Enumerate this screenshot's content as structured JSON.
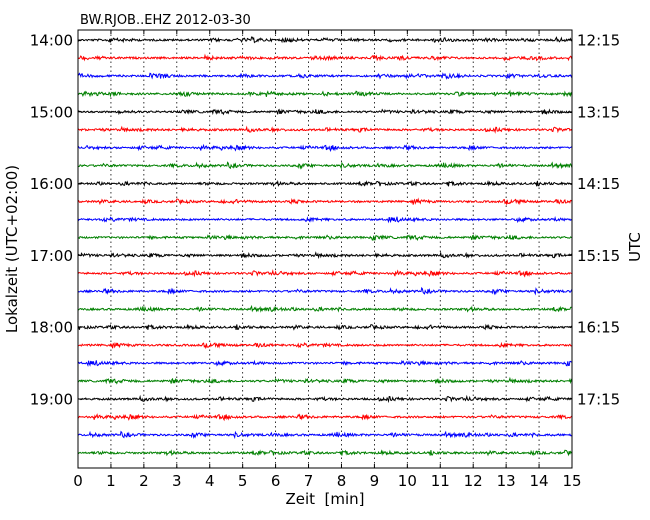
{
  "chart_data": {
    "type": "line",
    "title": "BW.RJOB..EHZ 2012-03-30",
    "xlabel": "Zeit  [min]",
    "ylabel_left": "Lokalzeit (UTC+02:00)",
    "ylabel_right": "UTC",
    "xlim": [
      0,
      15
    ],
    "x_ticks": [
      "0",
      "1",
      "2",
      "3",
      "4",
      "5",
      "6",
      "7",
      "8",
      "9",
      "10",
      "11",
      "12",
      "13",
      "14",
      "15"
    ],
    "left_tick_labels": [
      "14:00",
      "15:00",
      "16:00",
      "17:00",
      "18:00",
      "19:00"
    ],
    "right_tick_labels": [
      "12:15",
      "13:15",
      "14:15",
      "15:15",
      "16:15",
      "17:15"
    ],
    "grid": "vertical dotted",
    "trace_colors": [
      "#000000",
      "#ff0000",
      "#0000ff",
      "#008000"
    ],
    "traces_count": 24,
    "trace_interval_min": 15
  }
}
